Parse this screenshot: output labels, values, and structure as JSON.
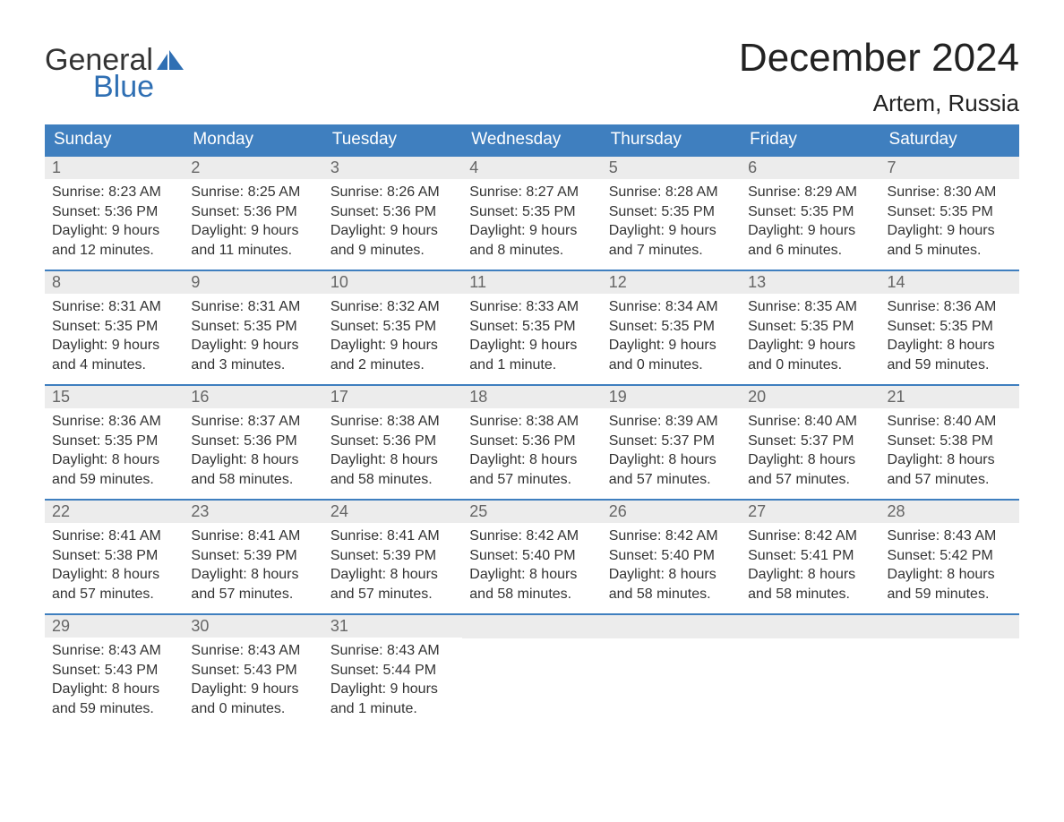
{
  "logo": {
    "line1": "General",
    "line2": "Blue"
  },
  "title": "December 2024",
  "location": "Artem, Russia",
  "colors": {
    "header_bg": "#3f7fbf",
    "header_text": "#ffffff",
    "daynum_bg": "#ececec",
    "daynum_text": "#666666",
    "body_text": "#333333",
    "row_border": "#3f7fbf",
    "logo_blue": "#2f6fb3"
  },
  "day_headers": [
    "Sunday",
    "Monday",
    "Tuesday",
    "Wednesday",
    "Thursday",
    "Friday",
    "Saturday"
  ],
  "weeks": [
    [
      {
        "num": "1",
        "sunrise": "Sunrise: 8:23 AM",
        "sunset": "Sunset: 5:36 PM",
        "day1": "Daylight: 9 hours",
        "day2": "and 12 minutes."
      },
      {
        "num": "2",
        "sunrise": "Sunrise: 8:25 AM",
        "sunset": "Sunset: 5:36 PM",
        "day1": "Daylight: 9 hours",
        "day2": "and 11 minutes."
      },
      {
        "num": "3",
        "sunrise": "Sunrise: 8:26 AM",
        "sunset": "Sunset: 5:36 PM",
        "day1": "Daylight: 9 hours",
        "day2": "and 9 minutes."
      },
      {
        "num": "4",
        "sunrise": "Sunrise: 8:27 AM",
        "sunset": "Sunset: 5:35 PM",
        "day1": "Daylight: 9 hours",
        "day2": "and 8 minutes."
      },
      {
        "num": "5",
        "sunrise": "Sunrise: 8:28 AM",
        "sunset": "Sunset: 5:35 PM",
        "day1": "Daylight: 9 hours",
        "day2": "and 7 minutes."
      },
      {
        "num": "6",
        "sunrise": "Sunrise: 8:29 AM",
        "sunset": "Sunset: 5:35 PM",
        "day1": "Daylight: 9 hours",
        "day2": "and 6 minutes."
      },
      {
        "num": "7",
        "sunrise": "Sunrise: 8:30 AM",
        "sunset": "Sunset: 5:35 PM",
        "day1": "Daylight: 9 hours",
        "day2": "and 5 minutes."
      }
    ],
    [
      {
        "num": "8",
        "sunrise": "Sunrise: 8:31 AM",
        "sunset": "Sunset: 5:35 PM",
        "day1": "Daylight: 9 hours",
        "day2": "and 4 minutes."
      },
      {
        "num": "9",
        "sunrise": "Sunrise: 8:31 AM",
        "sunset": "Sunset: 5:35 PM",
        "day1": "Daylight: 9 hours",
        "day2": "and 3 minutes."
      },
      {
        "num": "10",
        "sunrise": "Sunrise: 8:32 AM",
        "sunset": "Sunset: 5:35 PM",
        "day1": "Daylight: 9 hours",
        "day2": "and 2 minutes."
      },
      {
        "num": "11",
        "sunrise": "Sunrise: 8:33 AM",
        "sunset": "Sunset: 5:35 PM",
        "day1": "Daylight: 9 hours",
        "day2": "and 1 minute."
      },
      {
        "num": "12",
        "sunrise": "Sunrise: 8:34 AM",
        "sunset": "Sunset: 5:35 PM",
        "day1": "Daylight: 9 hours",
        "day2": "and 0 minutes."
      },
      {
        "num": "13",
        "sunrise": "Sunrise: 8:35 AM",
        "sunset": "Sunset: 5:35 PM",
        "day1": "Daylight: 9 hours",
        "day2": "and 0 minutes."
      },
      {
        "num": "14",
        "sunrise": "Sunrise: 8:36 AM",
        "sunset": "Sunset: 5:35 PM",
        "day1": "Daylight: 8 hours",
        "day2": "and 59 minutes."
      }
    ],
    [
      {
        "num": "15",
        "sunrise": "Sunrise: 8:36 AM",
        "sunset": "Sunset: 5:35 PM",
        "day1": "Daylight: 8 hours",
        "day2": "and 59 minutes."
      },
      {
        "num": "16",
        "sunrise": "Sunrise: 8:37 AM",
        "sunset": "Sunset: 5:36 PM",
        "day1": "Daylight: 8 hours",
        "day2": "and 58 minutes."
      },
      {
        "num": "17",
        "sunrise": "Sunrise: 8:38 AM",
        "sunset": "Sunset: 5:36 PM",
        "day1": "Daylight: 8 hours",
        "day2": "and 58 minutes."
      },
      {
        "num": "18",
        "sunrise": "Sunrise: 8:38 AM",
        "sunset": "Sunset: 5:36 PM",
        "day1": "Daylight: 8 hours",
        "day2": "and 57 minutes."
      },
      {
        "num": "19",
        "sunrise": "Sunrise: 8:39 AM",
        "sunset": "Sunset: 5:37 PM",
        "day1": "Daylight: 8 hours",
        "day2": "and 57 minutes."
      },
      {
        "num": "20",
        "sunrise": "Sunrise: 8:40 AM",
        "sunset": "Sunset: 5:37 PM",
        "day1": "Daylight: 8 hours",
        "day2": "and 57 minutes."
      },
      {
        "num": "21",
        "sunrise": "Sunrise: 8:40 AM",
        "sunset": "Sunset: 5:38 PM",
        "day1": "Daylight: 8 hours",
        "day2": "and 57 minutes."
      }
    ],
    [
      {
        "num": "22",
        "sunrise": "Sunrise: 8:41 AM",
        "sunset": "Sunset: 5:38 PM",
        "day1": "Daylight: 8 hours",
        "day2": "and 57 minutes."
      },
      {
        "num": "23",
        "sunrise": "Sunrise: 8:41 AM",
        "sunset": "Sunset: 5:39 PM",
        "day1": "Daylight: 8 hours",
        "day2": "and 57 minutes."
      },
      {
        "num": "24",
        "sunrise": "Sunrise: 8:41 AM",
        "sunset": "Sunset: 5:39 PM",
        "day1": "Daylight: 8 hours",
        "day2": "and 57 minutes."
      },
      {
        "num": "25",
        "sunrise": "Sunrise: 8:42 AM",
        "sunset": "Sunset: 5:40 PM",
        "day1": "Daylight: 8 hours",
        "day2": "and 58 minutes."
      },
      {
        "num": "26",
        "sunrise": "Sunrise: 8:42 AM",
        "sunset": "Sunset: 5:40 PM",
        "day1": "Daylight: 8 hours",
        "day2": "and 58 minutes."
      },
      {
        "num": "27",
        "sunrise": "Sunrise: 8:42 AM",
        "sunset": "Sunset: 5:41 PM",
        "day1": "Daylight: 8 hours",
        "day2": "and 58 minutes."
      },
      {
        "num": "28",
        "sunrise": "Sunrise: 8:43 AM",
        "sunset": "Sunset: 5:42 PM",
        "day1": "Daylight: 8 hours",
        "day2": "and 59 minutes."
      }
    ],
    [
      {
        "num": "29",
        "sunrise": "Sunrise: 8:43 AM",
        "sunset": "Sunset: 5:43 PM",
        "day1": "Daylight: 8 hours",
        "day2": "and 59 minutes."
      },
      {
        "num": "30",
        "sunrise": "Sunrise: 8:43 AM",
        "sunset": "Sunset: 5:43 PM",
        "day1": "Daylight: 9 hours",
        "day2": "and 0 minutes."
      },
      {
        "num": "31",
        "sunrise": "Sunrise: 8:43 AM",
        "sunset": "Sunset: 5:44 PM",
        "day1": "Daylight: 9 hours",
        "day2": "and 1 minute."
      },
      null,
      null,
      null,
      null
    ]
  ]
}
